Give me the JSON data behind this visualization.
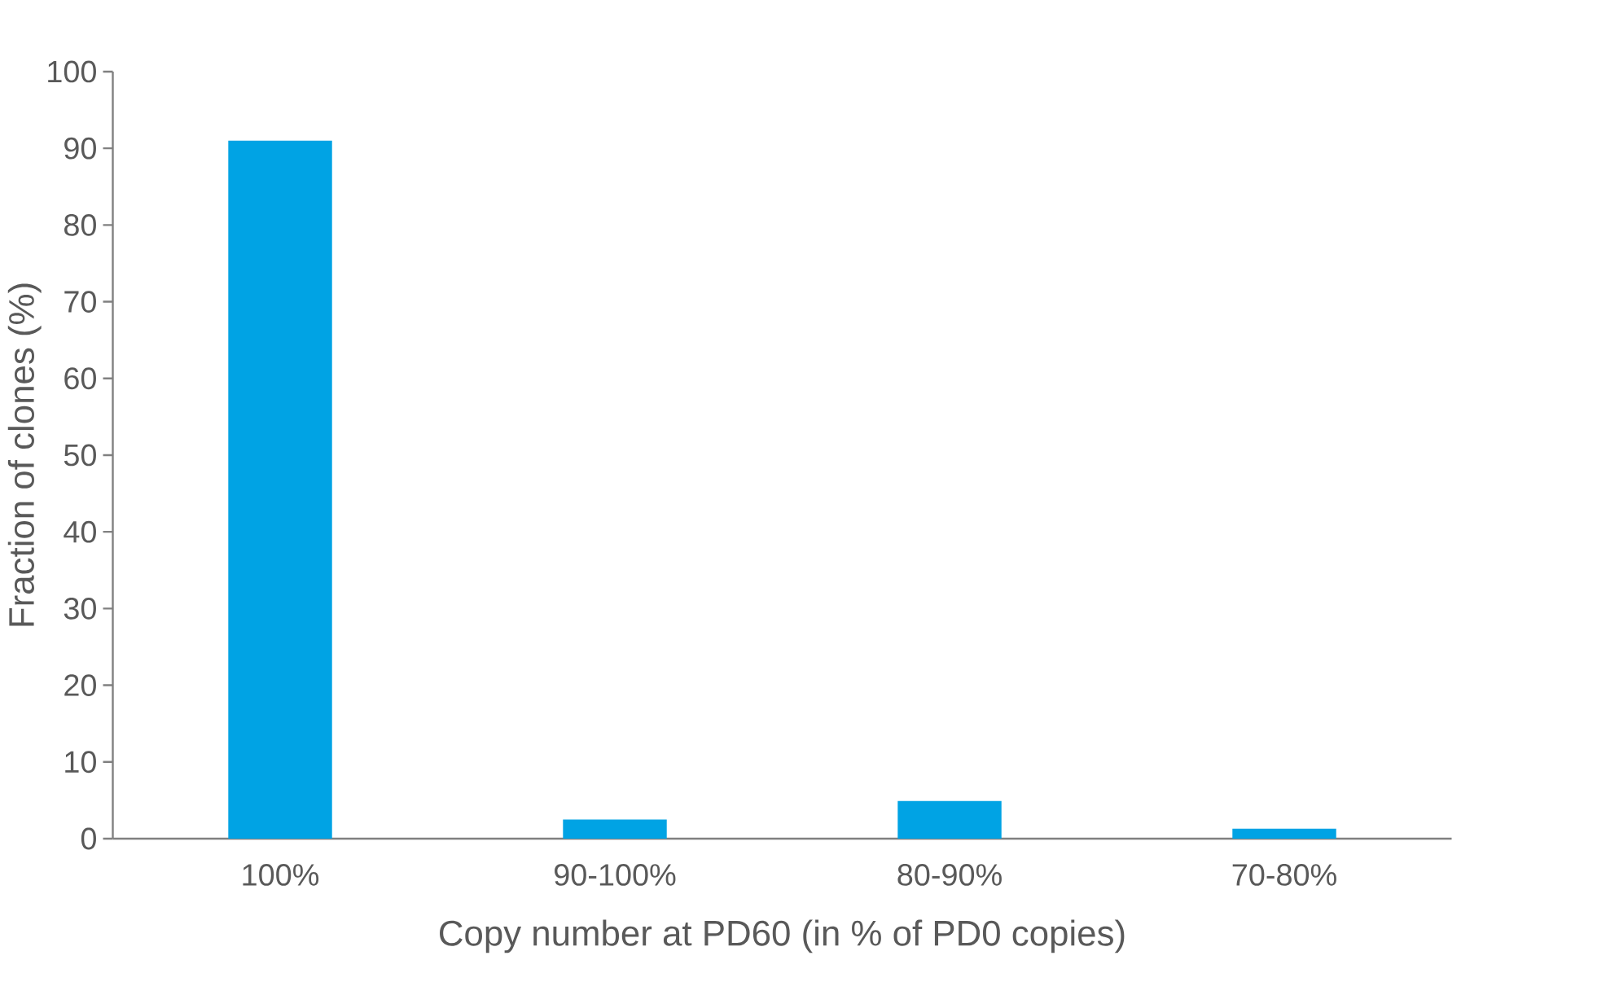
{
  "chart_data": {
    "type": "bar",
    "xlabel": "Copy number at PD60 (in % of PD0 copies)",
    "ylabel": "Fraction of clones (%)",
    "categories": [
      "100%",
      "90-100%",
      "80-90%",
      "70-80%"
    ],
    "values": [
      91,
      2.5,
      4.9,
      1.3
    ],
    "color": "#00a3e4",
    "ylim": [
      0,
      100
    ],
    "yticks": [
      0,
      10,
      20,
      30,
      40,
      50,
      60,
      70,
      80,
      90,
      100
    ]
  }
}
